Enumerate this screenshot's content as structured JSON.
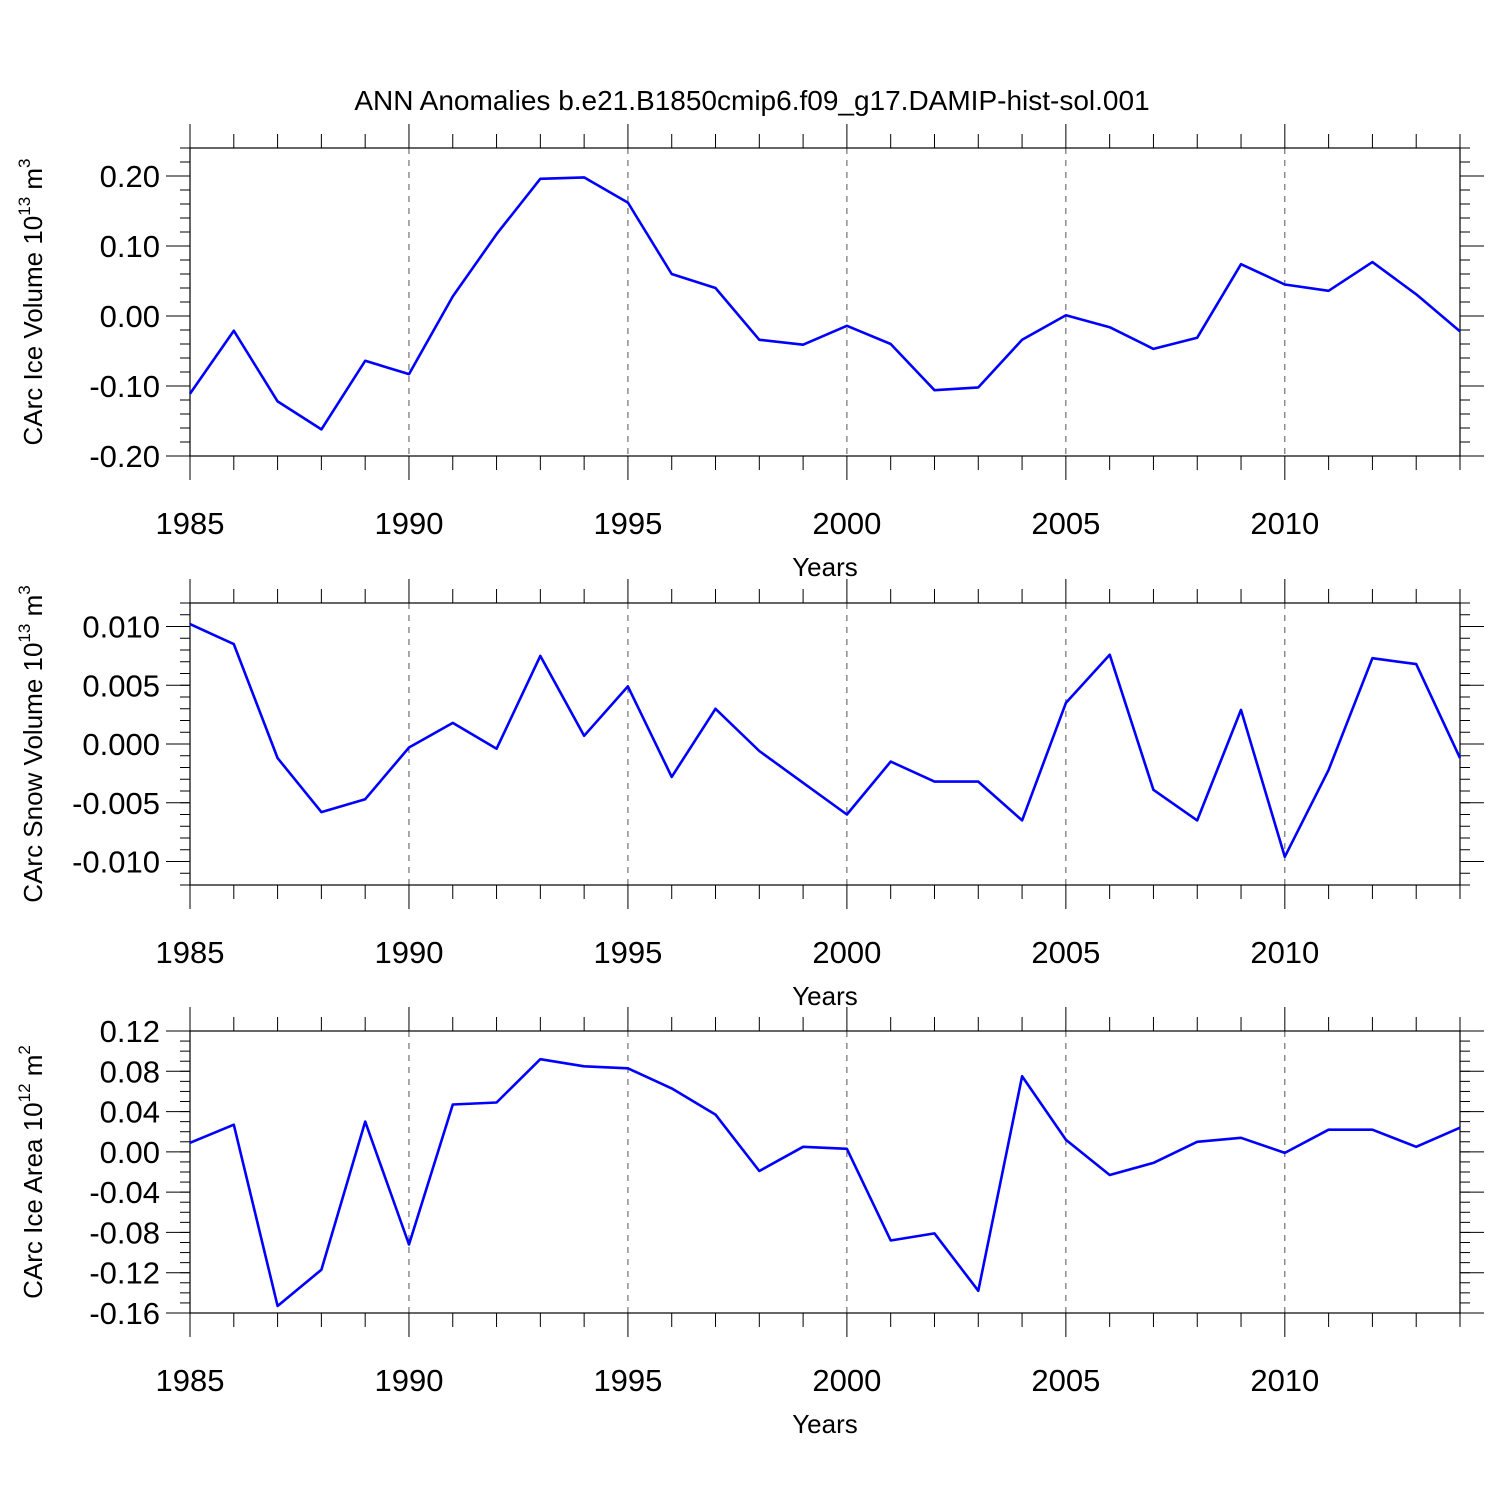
{
  "title": "ANN Anomalies b.e21.B1850cmip6.f09_g17.DAMIP-hist-sol.001",
  "colors": {
    "series": "#0000ff",
    "axes": "#000000",
    "grid": "#555555"
  },
  "chart_data": [
    {
      "type": "line",
      "ylabel": {
        "text": "CArc Ice Volume 10",
        "sup": "13",
        "unit": " m",
        "unit_sup": "3"
      },
      "xlabel": "Years",
      "xlim": [
        1985,
        2014
      ],
      "ylim": [
        -0.2,
        0.24
      ],
      "yticks": [
        -0.2,
        -0.1,
        0.0,
        0.1,
        0.2
      ],
      "ytick_labels": [
        "-0.20",
        "-0.10",
        "0.00",
        "0.10",
        "0.20"
      ],
      "yminor_step": 0.02,
      "xticks": [
        1985,
        1990,
        1995,
        2000,
        2005,
        2010
      ],
      "xtick_labels": [
        "1985",
        "1990",
        "1995",
        "2000",
        "2005",
        "2010"
      ],
      "grid": "vertical dashed at major x ticks",
      "series": [
        {
          "x": [
            1985,
            1986,
            1987,
            1988,
            1989,
            1990,
            1991,
            1992,
            1993,
            1994,
            1995,
            1996,
            1997,
            1998,
            1999,
            2000,
            2001,
            2002,
            2003,
            2004,
            2005,
            2006,
            2007,
            2008,
            2009,
            2010,
            2011,
            2012,
            2013,
            2014
          ],
          "values": [
            -0.111,
            -0.021,
            -0.122,
            -0.162,
            -0.064,
            -0.083,
            0.028,
            0.117,
            0.196,
            0.198,
            0.162,
            0.06,
            0.04,
            -0.034,
            -0.041,
            -0.014,
            -0.04,
            -0.106,
            -0.102,
            -0.034,
            0.001,
            -0.016,
            -0.047,
            -0.031,
            0.074,
            0.045,
            0.036,
            0.077,
            0.031,
            -0.022
          ]
        }
      ]
    },
    {
      "type": "line",
      "ylabel": {
        "text": "CArc Snow Volume 10",
        "sup": "13",
        "unit": " m",
        "unit_sup": "3"
      },
      "xlabel": "Years",
      "xlim": [
        1985,
        2014
      ],
      "ylim": [
        -0.012,
        0.012
      ],
      "yticks": [
        -0.01,
        -0.005,
        0.0,
        0.005,
        0.01
      ],
      "ytick_labels": [
        "-0.010",
        "-0.005",
        "0.000",
        "0.005",
        "0.010"
      ],
      "yminor_step": 0.001,
      "xticks": [
        1985,
        1990,
        1995,
        2000,
        2005,
        2010
      ],
      "xtick_labels": [
        "1985",
        "1990",
        "1995",
        "2000",
        "2005",
        "2010"
      ],
      "grid": "vertical dashed at major x ticks",
      "series": [
        {
          "x": [
            1985,
            1986,
            1987,
            1988,
            1989,
            1990,
            1991,
            1992,
            1993,
            1994,
            1995,
            1996,
            1997,
            1998,
            1999,
            2000,
            2001,
            2002,
            2003,
            2004,
            2005,
            2006,
            2007,
            2008,
            2009,
            2010,
            2011,
            2012,
            2013,
            2014
          ],
          "values": [
            0.0102,
            0.0085,
            -0.0012,
            -0.0058,
            -0.0047,
            -0.0003,
            0.0018,
            -0.0004,
            0.0075,
            0.0007,
            0.0049,
            -0.0028,
            0.003,
            -0.0006,
            -0.0033,
            -0.006,
            -0.0015,
            -0.0032,
            -0.0032,
            -0.0065,
            0.0035,
            0.0076,
            -0.0039,
            -0.0065,
            0.0029,
            -0.0096,
            -0.0022,
            0.0073,
            0.0068,
            -0.0012
          ]
        }
      ]
    },
    {
      "type": "line",
      "ylabel": {
        "text": "CArc Ice Area 10",
        "sup": "12",
        "unit": " m",
        "unit_sup": "2"
      },
      "xlabel": "Years",
      "xlim": [
        1985,
        2014
      ],
      "ylim": [
        -0.16,
        0.12
      ],
      "yticks": [
        -0.16,
        -0.12,
        -0.08,
        -0.04,
        0.0,
        0.04,
        0.08,
        0.12
      ],
      "ytick_labels": [
        "-0.16",
        "-0.12",
        "-0.08",
        "-0.04",
        "0.00",
        "0.04",
        "0.08",
        "0.12"
      ],
      "yminor_step": 0.01,
      "xticks": [
        1985,
        1990,
        1995,
        2000,
        2005,
        2010
      ],
      "xtick_labels": [
        "1985",
        "1990",
        "1995",
        "2000",
        "2005",
        "2010"
      ],
      "grid": "vertical dashed at major x ticks",
      "series": [
        {
          "x": [
            1985,
            1986,
            1987,
            1988,
            1989,
            1990,
            1991,
            1992,
            1993,
            1994,
            1995,
            1996,
            1997,
            1998,
            1999,
            2000,
            2001,
            2002,
            2003,
            2004,
            2005,
            2006,
            2007,
            2008,
            2009,
            2010,
            2011,
            2012,
            2013,
            2014
          ],
          "values": [
            0.009,
            0.027,
            -0.153,
            -0.117,
            0.03,
            -0.092,
            0.047,
            0.049,
            0.092,
            0.085,
            0.083,
            0.063,
            0.037,
            -0.019,
            0.005,
            0.003,
            -0.088,
            -0.081,
            -0.138,
            0.075,
            0.012,
            -0.023,
            -0.011,
            0.01,
            0.014,
            -0.001,
            0.022,
            0.022,
            0.005,
            0.024
          ]
        }
      ]
    }
  ]
}
